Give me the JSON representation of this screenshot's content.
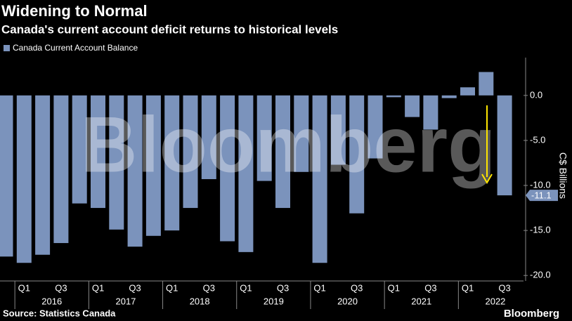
{
  "chart_data": {
    "type": "bar",
    "title": "Widening to Normal",
    "subtitle": "Canada's current account deficit returns to historical levels",
    "series": [
      {
        "name": "Canada Current Account Balance",
        "color": "#7b93bc",
        "values": [
          -17.9,
          -18.6,
          -17.7,
          -16.4,
          -12.0,
          -12.5,
          -14.9,
          -16.8,
          -15.6,
          -15.0,
          -12.5,
          -9.3,
          -16.2,
          -17.4,
          -9.5,
          -12.5,
          -8.5,
          -18.6,
          -7.7,
          -13.1,
          -7.0,
          -0.2,
          -2.4,
          -3.8,
          -0.3,
          0.9,
          2.6,
          -11.1
        ],
        "value_labels": [
          null,
          null,
          null,
          null,
          null,
          null,
          null,
          null,
          null,
          null,
          null,
          null,
          null,
          null,
          null,
          null,
          null,
          null,
          null,
          null,
          null,
          null,
          null,
          null,
          null,
          null,
          null,
          "-11.1"
        ]
      }
    ],
    "categories": [
      null,
      "Q1",
      null,
      "Q3",
      null,
      "Q1",
      null,
      "Q3",
      null,
      "Q1",
      null,
      "Q3",
      null,
      "Q1",
      null,
      "Q3",
      null,
      "Q1",
      null,
      "Q3",
      null,
      "Q1",
      null,
      "Q3",
      null,
      "Q1",
      null,
      "Q3"
    ],
    "years": [
      "2016",
      "2017",
      "2018",
      "2019",
      "2020",
      "2021",
      "2022"
    ],
    "ylabel": "C$ Billions",
    "ylim": [
      -21,
      4.2
    ],
    "yticks": [
      {
        "value": 0,
        "label": "0.0"
      },
      {
        "value": -5,
        "label": "-5.0"
      },
      {
        "value": -10,
        "label": "-10.0"
      },
      {
        "value": -15,
        "label": "-15.0"
      },
      {
        "value": -20,
        "label": "-20.0"
      }
    ],
    "watermark": "Bloomberg",
    "source": "Source: Statistics Canada",
    "logo": "Bloomberg"
  }
}
